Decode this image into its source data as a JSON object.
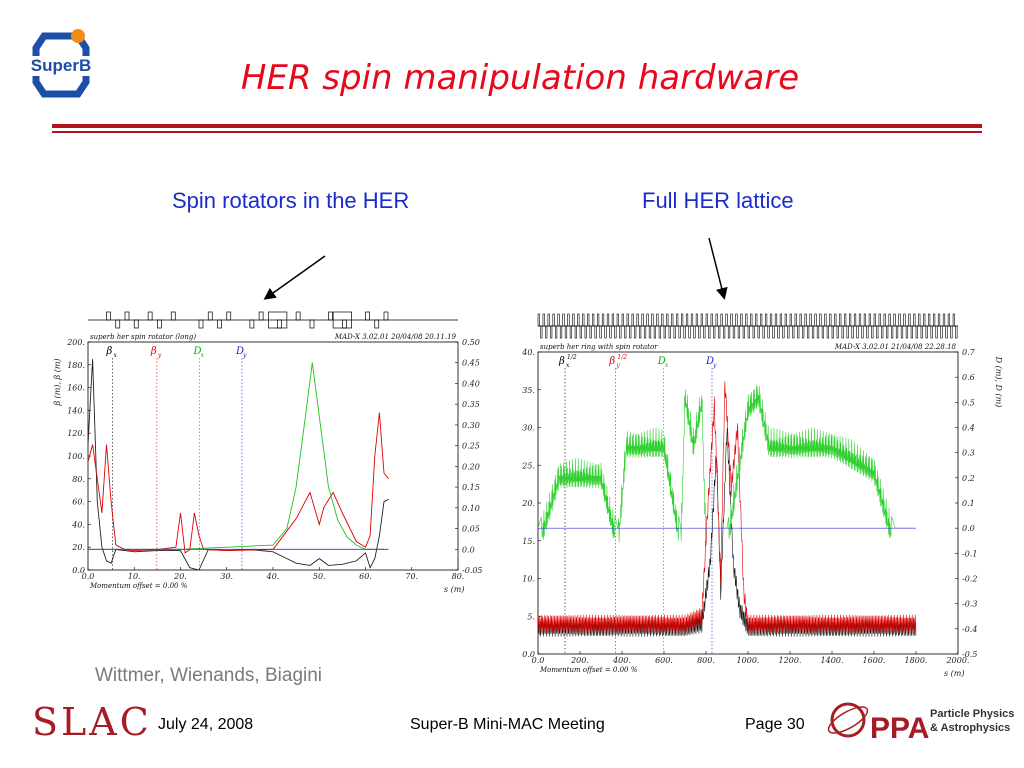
{
  "slide": {
    "title": "HER spin manipulation hardware",
    "subtitle_left": "Spin rotators in the HER",
    "subtitle_right": "Full HER lattice",
    "credits": "Wittmer, Wienands, Biagini",
    "footer": {
      "date": "July 24, 2008",
      "meeting": "Super-B Mini-MAC Meeting",
      "page": "Page 30"
    },
    "logos": {
      "superb": "SuperB",
      "slac": "SLAC",
      "ppa": "PPA",
      "ppa_line1": "Particle Physics",
      "ppa_line2": "& Astrophysics"
    },
    "colors": {
      "title": "#e8081c",
      "subtitle": "#1a2ccc",
      "rule": "#b3121c"
    }
  },
  "chart_data": [
    {
      "type": "line",
      "header_left": "superb her spin rotator (long)",
      "header_right": "MAD-X 3.02.01  20/04/08 20.11.19",
      "xlabel": "s (m)",
      "ylabel_left": "β (m), β (m)",
      "footer_note": "Momentum offset =    0.00 %",
      "xlim": [
        0,
        80
      ],
      "ylim_left": [
        0,
        200
      ],
      "ylim_right": [
        -0.05,
        0.5
      ],
      "x_ticks": [
        "0.0",
        "10.",
        "20.",
        "30.",
        "40.",
        "50.",
        "60.",
        "70.",
        "80."
      ],
      "y_ticks_left": [
        "0.0",
        "20.",
        "40.",
        "60.",
        "80.",
        "100.",
        "120.",
        "140.",
        "160.",
        "180.",
        "200."
      ],
      "y_ticks_right": [
        "-0.05",
        "0.0",
        "0.05",
        "0.10",
        "0.15",
        "0.20",
        "0.25",
        "0.30",
        "0.35",
        "0.40",
        "0.45",
        "0.50"
      ],
      "legend": [
        {
          "label": "β",
          "sub": "x",
          "color": "#000000"
        },
        {
          "label": "β",
          "sub": "y",
          "color": "#e00000"
        },
        {
          "label": "D",
          "sub": "x",
          "color": "#00b000"
        },
        {
          "label": "D",
          "sub": "y",
          "color": "#2020d0"
        }
      ],
      "series": [
        {
          "name": "βx",
          "color": "#222222",
          "axis": "left",
          "x": [
            0,
            1,
            2,
            3,
            4,
            5,
            6,
            8,
            10,
            15,
            20,
            22,
            24,
            26,
            30,
            35,
            40,
            43,
            45,
            48,
            50,
            52,
            55,
            58,
            60,
            61,
            62,
            63,
            64,
            65
          ],
          "y": [
            110,
            185,
            60,
            20,
            8,
            6,
            18,
            17,
            16,
            17,
            17,
            2,
            0,
            18,
            17,
            18,
            16,
            10,
            6,
            4,
            10,
            4,
            5,
            8,
            15,
            2,
            10,
            30,
            60,
            62
          ]
        },
        {
          "name": "βy",
          "color": "#e00000",
          "axis": "left",
          "x": [
            0,
            1,
            2,
            3,
            4,
            5,
            6,
            8,
            10,
            15,
            19,
            20,
            21,
            22,
            23,
            24,
            25,
            30,
            40,
            45,
            48,
            50,
            51,
            53,
            55,
            58,
            60,
            61,
            62,
            63,
            64,
            65
          ],
          "y": [
            95,
            110,
            80,
            50,
            110,
            60,
            22,
            18,
            17,
            18,
            20,
            50,
            15,
            18,
            50,
            30,
            18,
            17,
            18,
            45,
            68,
            40,
            55,
            68,
            50,
            25,
            20,
            30,
            100,
            138,
            85,
            80
          ]
        },
        {
          "name": "Dx",
          "color": "#20c020",
          "axis": "right",
          "x": [
            0,
            10,
            20,
            30,
            40,
            43,
            45,
            47,
            48.5,
            50,
            52,
            54,
            56,
            58,
            60,
            62,
            64
          ],
          "y": [
            0.0,
            0.0,
            0.0,
            0.005,
            0.01,
            0.05,
            0.15,
            0.32,
            0.45,
            0.32,
            0.15,
            0.07,
            0.03,
            0.01,
            0.0,
            0.0,
            0.0
          ]
        },
        {
          "name": "Dy",
          "color": "#3030e0",
          "axis": "right",
          "x": [
            0,
            65
          ],
          "y": [
            0.0,
            0.0
          ]
        }
      ]
    },
    {
      "type": "line",
      "header_left": "superb her ring with spin rotator",
      "header_right": "MAD-X 3.02.01  21/04/08 22.28.18",
      "xlabel": "s (m)",
      "ylabel_right": "D (m), D (m)",
      "footer_note": "Momentum offset =    0.00 %",
      "xlim": [
        0,
        2000
      ],
      "ylim_left": [
        0,
        40
      ],
      "ylim_right": [
        -0.5,
        0.7
      ],
      "x_ticks": [
        "0.0",
        "200.",
        "400.",
        "600.",
        "800.",
        "1000.",
        "1200.",
        "1400.",
        "1600.",
        "1800.",
        "2000."
      ],
      "y_ticks_left": [
        "0.0",
        "5.",
        "10.",
        "15.",
        "20.",
        "25.",
        "30.",
        "35.",
        "40."
      ],
      "y_ticks_right": [
        "-0.5",
        "-0.4",
        "-0.3",
        "-0.2",
        "-0.1",
        "0.0",
        "0.1",
        "0.2",
        "0.3",
        "0.4",
        "0.5",
        "0.6",
        "0.7"
      ],
      "legend": [
        {
          "label": "β",
          "sub": "x",
          "sup": "1/2",
          "color": "#000000"
        },
        {
          "label": "β",
          "sub": "y",
          "sup": "1/2",
          "color": "#e00000"
        },
        {
          "label": "D",
          "sub": "x",
          "color": "#00b000"
        },
        {
          "label": "D",
          "sub": "y",
          "color": "#2020d0"
        }
      ],
      "series": [
        {
          "name": "βx^1/2",
          "color": "#111111",
          "axis": "left",
          "x": [
            0,
            200,
            400,
            600,
            700,
            780,
            820,
            850,
            870,
            900,
            930,
            960,
            1000,
            1200,
            1400,
            1600,
            1800
          ],
          "y": [
            3.5,
            3.5,
            3.5,
            3.5,
            3.5,
            4,
            12,
            27,
            8,
            30,
            12,
            6,
            3.5,
            3.5,
            3.5,
            3.5,
            3.5
          ]
        },
        {
          "name": "βy^1/2",
          "color": "#e00000",
          "axis": "left",
          "x": [
            0,
            200,
            400,
            600,
            700,
            780,
            810,
            840,
            870,
            890,
            920,
            950,
            980,
            1000,
            1200,
            1400,
            1600,
            1800
          ],
          "y": [
            4,
            4,
            4,
            4,
            4,
            5,
            20,
            33,
            10,
            36,
            22,
            30,
            8,
            4,
            4,
            4,
            4,
            4
          ]
        },
        {
          "name": "Dx",
          "color": "#30d030",
          "axis": "right",
          "x": [
            0,
            100,
            200,
            300,
            380,
            420,
            500,
            600,
            680,
            700,
            740,
            780,
            800,
            900,
            1000,
            1050,
            1100,
            1200,
            1400,
            1600,
            1700,
            1800
          ],
          "y": [
            0.0,
            0.28,
            0.28,
            0.28,
            0.0,
            0.4,
            0.4,
            0.4,
            0.0,
            0.6,
            0.4,
            0.58,
            0.0,
            0.0,
            0.55,
            0.6,
            0.4,
            0.4,
            0.4,
            0.3,
            0.0,
            0.0
          ]
        },
        {
          "name": "Dy",
          "color": "#3030e0",
          "axis": "right",
          "x": [
            0,
            1800
          ],
          "y": [
            0.0,
            0.0
          ]
        }
      ]
    }
  ]
}
